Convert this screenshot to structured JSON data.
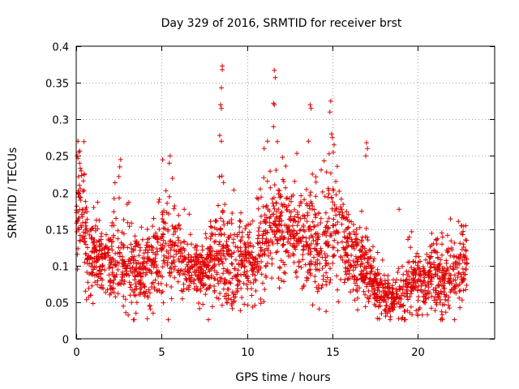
{
  "chart_data": {
    "type": "scatter",
    "title": "Day 329 of 2016, SRMTID for receiver brst",
    "xlabel": "GPS time / hours",
    "ylabel": "SRMTID / TECUs",
    "xlim": [
      0,
      24.5
    ],
    "ylim": [
      0,
      0.4
    ],
    "xticks": [
      0,
      5,
      10,
      15,
      20
    ],
    "xtick_labels": [
      "0",
      "5",
      "10",
      "15",
      "20"
    ],
    "yticks": [
      0,
      0.05,
      0.1,
      0.15,
      0.2,
      0.25,
      0.3,
      0.35,
      0.4
    ],
    "ytick_labels": [
      "0",
      "0.05",
      "0.1",
      "0.15",
      "0.2",
      "0.25",
      "0.3",
      "0.35",
      "0.4"
    ],
    "grid": true,
    "marker": "+",
    "series": [
      {
        "name": "SRMTID",
        "color": "#e00000",
        "x_range": [
          0,
          22.9
        ],
        "point_count": 2400,
        "profile": [
          {
            "x": 0.0,
            "y": 0.15,
            "spread": 0.045
          },
          {
            "x": 0.25,
            "y": 0.2,
            "spread": 0.06
          },
          {
            "x": 0.7,
            "y": 0.11,
            "spread": 0.04
          },
          {
            "x": 1.5,
            "y": 0.1,
            "spread": 0.03
          },
          {
            "x": 2.5,
            "y": 0.1,
            "spread": 0.04
          },
          {
            "x": 3.5,
            "y": 0.09,
            "spread": 0.04
          },
          {
            "x": 4.5,
            "y": 0.1,
            "spread": 0.035
          },
          {
            "x": 5.5,
            "y": 0.13,
            "spread": 0.05
          },
          {
            "x": 6.5,
            "y": 0.09,
            "spread": 0.025
          },
          {
            "x": 7.5,
            "y": 0.09,
            "spread": 0.03
          },
          {
            "x": 8.5,
            "y": 0.12,
            "spread": 0.05
          },
          {
            "x": 9.5,
            "y": 0.1,
            "spread": 0.035
          },
          {
            "x": 10.5,
            "y": 0.11,
            "spread": 0.035
          },
          {
            "x": 11.5,
            "y": 0.16,
            "spread": 0.05
          },
          {
            "x": 12.5,
            "y": 0.14,
            "spread": 0.04
          },
          {
            "x": 13.5,
            "y": 0.13,
            "spread": 0.045
          },
          {
            "x": 14.5,
            "y": 0.12,
            "spread": 0.05
          },
          {
            "x": 15.0,
            "y": 0.16,
            "spread": 0.06
          },
          {
            "x": 16.0,
            "y": 0.11,
            "spread": 0.04
          },
          {
            "x": 17.0,
            "y": 0.1,
            "spread": 0.035
          },
          {
            "x": 17.5,
            "y": 0.07,
            "spread": 0.02
          },
          {
            "x": 18.5,
            "y": 0.05,
            "spread": 0.018
          },
          {
            "x": 19.5,
            "y": 0.07,
            "spread": 0.025
          },
          {
            "x": 20.5,
            "y": 0.08,
            "spread": 0.03
          },
          {
            "x": 21.5,
            "y": 0.08,
            "spread": 0.03
          },
          {
            "x": 22.9,
            "y": 0.1,
            "spread": 0.035
          }
        ],
        "notable_points": [
          {
            "x": 8.55,
            "y": 0.373
          },
          {
            "x": 8.55,
            "y": 0.368
          },
          {
            "x": 8.5,
            "y": 0.343
          },
          {
            "x": 8.45,
            "y": 0.32
          },
          {
            "x": 8.5,
            "y": 0.315
          },
          {
            "x": 8.4,
            "y": 0.278
          },
          {
            "x": 8.5,
            "y": 0.27
          },
          {
            "x": 11.6,
            "y": 0.367
          },
          {
            "x": 11.65,
            "y": 0.357
          },
          {
            "x": 11.55,
            "y": 0.322
          },
          {
            "x": 11.6,
            "y": 0.32
          },
          {
            "x": 11.55,
            "y": 0.29
          },
          {
            "x": 13.7,
            "y": 0.32
          },
          {
            "x": 13.75,
            "y": 0.315
          },
          {
            "x": 13.6,
            "y": 0.27
          },
          {
            "x": 14.9,
            "y": 0.325
          },
          {
            "x": 14.85,
            "y": 0.31
          },
          {
            "x": 14.95,
            "y": 0.28
          },
          {
            "x": 15.0,
            "y": 0.275
          },
          {
            "x": 15.1,
            "y": 0.265
          },
          {
            "x": 15.05,
            "y": 0.255
          },
          {
            "x": 0.1,
            "y": 0.27
          },
          {
            "x": 0.15,
            "y": 0.255
          },
          {
            "x": 0.05,
            "y": 0.25
          },
          {
            "x": 0.2,
            "y": 0.24
          },
          {
            "x": 0.1,
            "y": 0.2
          },
          {
            "x": 17.0,
            "y": 0.268
          },
          {
            "x": 17.05,
            "y": 0.26
          },
          {
            "x": 16.95,
            "y": 0.25
          },
          {
            "x": 11.0,
            "y": 0.26
          },
          {
            "x": 11.2,
            "y": 0.27
          },
          {
            "x": 5.5,
            "y": 0.25
          },
          {
            "x": 5.45,
            "y": 0.24
          },
          {
            "x": 2.6,
            "y": 0.245
          },
          {
            "x": 2.55,
            "y": 0.235
          },
          {
            "x": 18.9,
            "y": 0.177
          },
          {
            "x": 18.4,
            "y": 0.03
          },
          {
            "x": 18.2,
            "y": 0.035
          },
          {
            "x": 4.5,
            "y": 0.035
          },
          {
            "x": 3.5,
            "y": 0.035
          }
        ]
      }
    ]
  }
}
